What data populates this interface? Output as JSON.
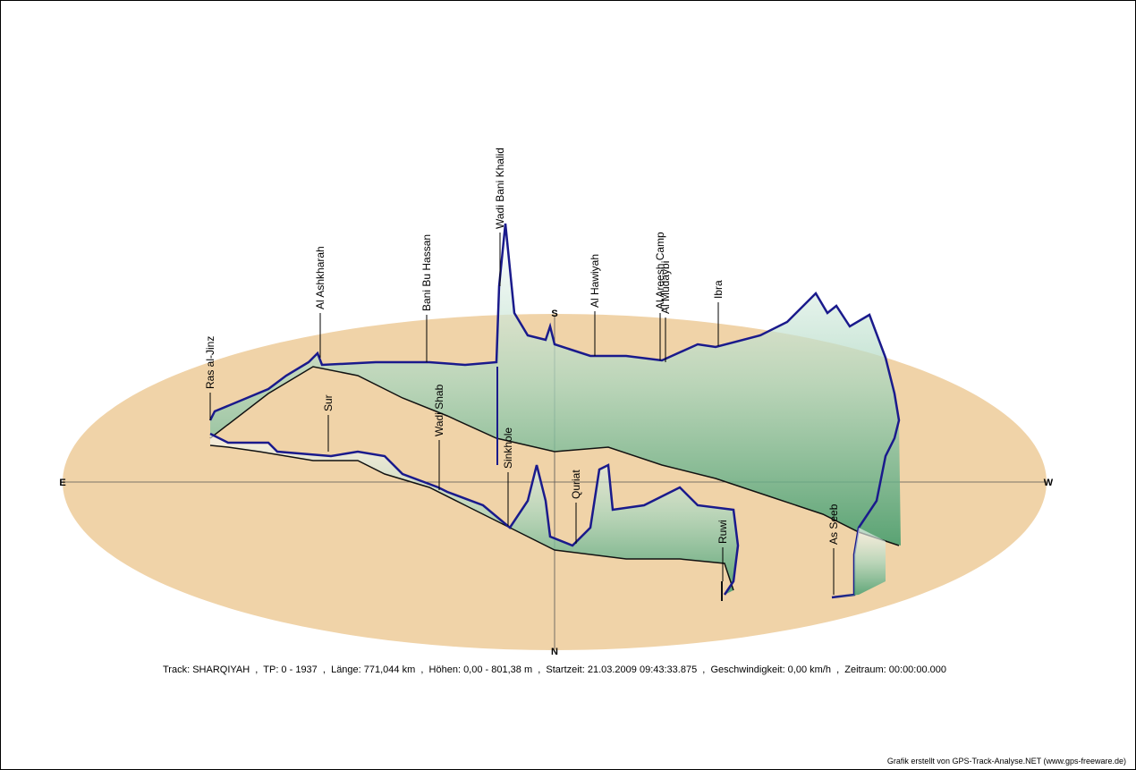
{
  "compass": {
    "east": "E",
    "west": "W",
    "south": "S",
    "north": "N"
  },
  "places": [
    "Ras al-Jinz",
    "Al Ashkharah",
    "Bani Bu Hassan",
    "Wadi Bani Khalid",
    "Al Hawiyah",
    "Al Areesh Camp",
    "Al Mudaybi",
    "Ibra",
    "Sur",
    "Wadi Shab",
    "Sinkhole",
    "Quriat",
    "Ruwi",
    "As Seeb"
  ],
  "info": "Track: SHARQIYAH  ,  TP: 0 - 1937  ,  Länge: 771,044 km  ,  Höhen: 0,00 - 801,38 m  ,  Startzeit: 21.03.2009 09:43:33.875  ,  Geschwindigkeit: 0,00 km/h  ,  Zeitraum: 00:00:00.000",
  "credit": "Grafik erstellt von GPS-Track-Analyse.NET (www.gps-freeware.de)"
}
